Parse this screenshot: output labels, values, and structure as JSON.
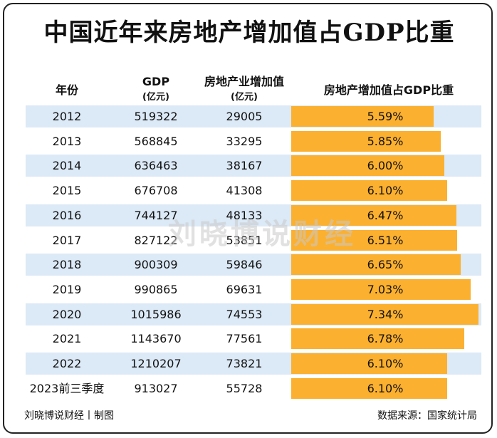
{
  "title": "中国近年来房地产增加值占GDP比重",
  "headers": {
    "year": "年份",
    "gdp": "GDP",
    "gdp_unit": "(亿元)",
    "re": "房地产业增加值",
    "re_unit": "(亿元)",
    "share": "房地产增加值占GDP比重"
  },
  "watermark": "刘晓博说财经",
  "footer": {
    "left": "刘晓博说财经丨制图",
    "right": "数据来源：国家统计局"
  },
  "colors": {
    "bar": "#fbb02f",
    "stripe": "#dce9f6"
  },
  "chart_data": {
    "type": "table",
    "title": "中国近年来房地产增加值占GDP比重",
    "columns": [
      "年份",
      "GDP (亿元)",
      "房地产业增加值 (亿元)",
      "房地产增加值占GDP比重"
    ],
    "rows": [
      {
        "year": "2012",
        "gdp": "519322",
        "re": "29005",
        "share": 5.59,
        "share_label": "5.59%"
      },
      {
        "year": "2013",
        "gdp": "568845",
        "re": "33295",
        "share": 5.85,
        "share_label": "5.85%"
      },
      {
        "year": "2014",
        "gdp": "636463",
        "re": "38167",
        "share": 6.0,
        "share_label": "6.00%"
      },
      {
        "year": "2015",
        "gdp": "676708",
        "re": "41308",
        "share": 6.1,
        "share_label": "6.10%"
      },
      {
        "year": "2016",
        "gdp": "744127",
        "re": "48133",
        "share": 6.47,
        "share_label": "6.47%"
      },
      {
        "year": "2017",
        "gdp": "827122",
        "re": "53851",
        "share": 6.51,
        "share_label": "6.51%"
      },
      {
        "year": "2018",
        "gdp": "900309",
        "re": "59846",
        "share": 6.65,
        "share_label": "6.65%"
      },
      {
        "year": "2019",
        "gdp": "990865",
        "re": "69631",
        "share": 7.03,
        "share_label": "7.03%"
      },
      {
        "year": "2020",
        "gdp": "1015986",
        "re": "74553",
        "share": 7.34,
        "share_label": "7.34%"
      },
      {
        "year": "2021",
        "gdp": "1143670",
        "re": "77561",
        "share": 6.78,
        "share_label": "6.78%"
      },
      {
        "year": "2022",
        "gdp": "1210207",
        "re": "73821",
        "share": 6.1,
        "share_label": "6.10%"
      },
      {
        "year": "2023前三季度",
        "gdp": "913027",
        "re": "55728",
        "share": 6.1,
        "share_label": "6.10%"
      }
    ],
    "bar_max": 7.34
  }
}
